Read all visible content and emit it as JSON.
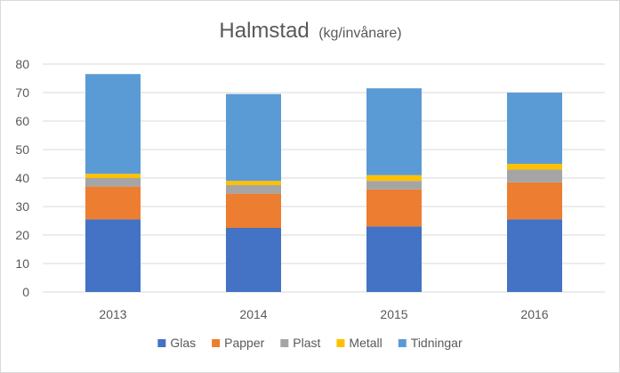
{
  "chart_data": {
    "type": "bar",
    "stacked": true,
    "title": "Halmstad",
    "subtitle": "(kg/invånare)",
    "xlabel": "",
    "ylabel": "",
    "categories": [
      "2013",
      "2014",
      "2015",
      "2016"
    ],
    "ylim": [
      0,
      80
    ],
    "yticks": [
      0,
      10,
      20,
      30,
      40,
      50,
      60,
      70,
      80
    ],
    "grid": true,
    "legend_position": "bottom",
    "series": [
      {
        "name": "Glas",
        "color": "#4472C4",
        "values": [
          25.5,
          22.5,
          23.0,
          25.5
        ]
      },
      {
        "name": "Papper",
        "color": "#ED7D31",
        "values": [
          11.5,
          12.0,
          13.0,
          13.0
        ]
      },
      {
        "name": "Plast",
        "color": "#A5A5A5",
        "values": [
          3.0,
          3.0,
          3.0,
          4.5
        ]
      },
      {
        "name": "Metall",
        "color": "#FFC000",
        "values": [
          1.5,
          1.5,
          2.0,
          2.0
        ]
      },
      {
        "name": "Tidningar",
        "color": "#5B9BD5",
        "values": [
          35.0,
          30.5,
          30.5,
          25.0
        ]
      }
    ]
  },
  "colors": {
    "text": "#595959",
    "grid": "#d9d9d9",
    "border": "#d9d9d9"
  }
}
